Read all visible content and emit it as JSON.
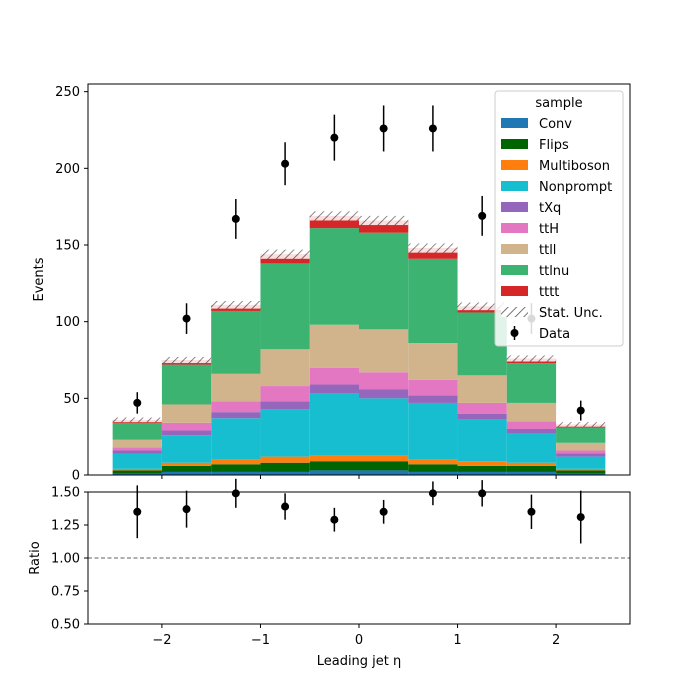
{
  "chart_data": [
    {
      "type": "bar",
      "stacked": true,
      "panel": "main",
      "title": "",
      "xlabel": "",
      "ylabel": "Events",
      "xlim": [
        -2.75,
        2.75
      ],
      "ylim": [
        0,
        255
      ],
      "yticks": [
        0,
        50,
        100,
        150,
        200,
        250
      ],
      "bin_edges": [
        -2.5,
        -2.0,
        -1.5,
        -1.0,
        -0.5,
        0.0,
        0.5,
        1.0,
        1.5,
        2.0,
        2.5
      ],
      "bin_centers": [
        -2.25,
        -1.75,
        -1.25,
        -0.75,
        -0.25,
        0.25,
        0.75,
        1.25,
        1.75,
        2.25
      ],
      "series": [
        {
          "name": "Conv",
          "color": "#1f77b4",
          "values": [
            1,
            2,
            2,
            2,
            3,
            3,
            2,
            2,
            2,
            1
          ]
        },
        {
          "name": "Flips",
          "color": "#006400",
          "values": [
            2,
            4,
            5,
            6,
            6,
            6,
            5,
            4,
            4,
            2
          ]
        },
        {
          "name": "Multiboson",
          "color": "#ff7f0e",
          "values": [
            1,
            2,
            3,
            4,
            4,
            4,
            3,
            3,
            2,
            1
          ]
        },
        {
          "name": "Nonprompt",
          "color": "#17becf",
          "values": [
            10,
            18,
            27,
            31,
            40,
            37,
            37,
            27,
            19,
            8
          ]
        },
        {
          "name": "tXq",
          "color": "#9467bd",
          "values": [
            2,
            3,
            4,
            5,
            6,
            6,
            5,
            4,
            3,
            2
          ]
        },
        {
          "name": "ttH",
          "color": "#e377c2",
          "values": [
            2,
            5,
            7,
            10,
            11,
            11,
            10,
            7,
            5,
            2
          ]
        },
        {
          "name": "ttll",
          "color": "#d2b48c",
          "values": [
            5,
            12,
            18,
            24,
            28,
            28,
            24,
            18,
            12,
            5
          ]
        },
        {
          "name": "ttlnu",
          "color": "#3cb371",
          "values": [
            11,
            26,
            41,
            56,
            63,
            63,
            55,
            41,
            26,
            10
          ]
        },
        {
          "name": "tttt",
          "color": "#d62728",
          "values": [
            2,
            3,
            4,
            6,
            8,
            8,
            7,
            4,
            3,
            2
          ]
        }
      ],
      "stat_unc": {
        "name": "Stat. Unc.",
        "values": [
          1.5,
          2,
          2.5,
          3,
          3,
          3,
          3,
          2.5,
          2,
          1.5
        ]
      },
      "data": {
        "name": "Data",
        "color": "#000000",
        "values": [
          47,
          102,
          167,
          203,
          220,
          226,
          226,
          169,
          102,
          42
        ],
        "errors": [
          7,
          10,
          13,
          14,
          15,
          15,
          15,
          13,
          10,
          6.5
        ]
      },
      "legend": {
        "title": "sample",
        "position": "top-right"
      }
    },
    {
      "type": "scatter",
      "panel": "ratio",
      "xlabel": "Leading jet  η",
      "ylabel": "Ratio",
      "xlim": [
        -2.75,
        2.75
      ],
      "ylim": [
        0.5,
        1.5
      ],
      "yticks": [
        "0.50",
        "0.75",
        "1.00",
        "1.25",
        "1.50"
      ],
      "xticks": [
        -2,
        -1,
        0,
        1,
        2
      ],
      "reference_line": 1.0,
      "x": [
        -2.25,
        -1.75,
        -1.25,
        -0.75,
        -0.25,
        0.25,
        0.75,
        1.25,
        1.75,
        2.25
      ],
      "values": [
        1.35,
        1.37,
        1.49,
        1.39,
        1.29,
        1.35,
        1.49,
        1.49,
        1.35,
        1.31
      ],
      "errors": [
        0.2,
        0.14,
        0.11,
        0.1,
        0.09,
        0.09,
        0.09,
        0.1,
        0.13,
        0.2
      ]
    }
  ]
}
